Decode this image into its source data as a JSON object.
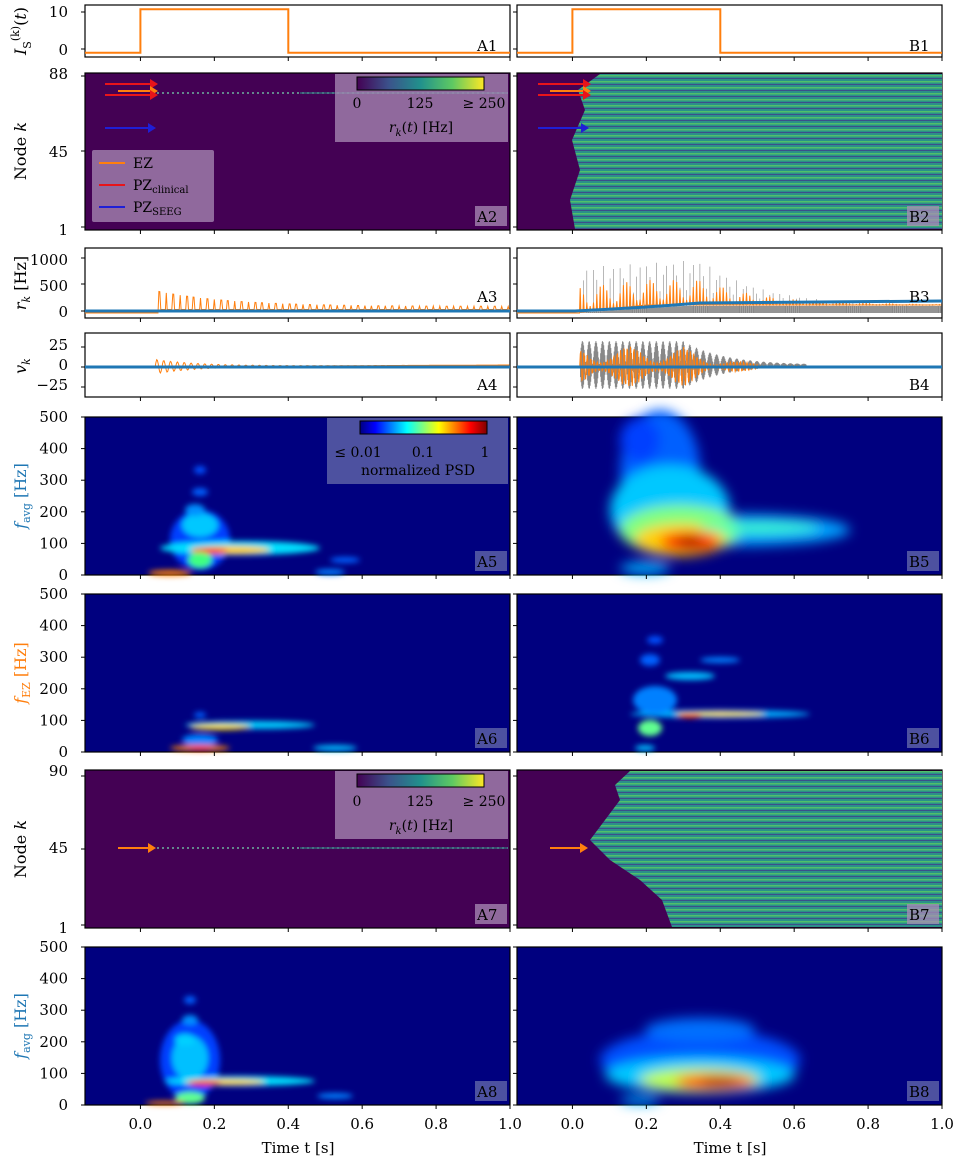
{
  "xlabel": "Time t [s]",
  "x_ticks": [
    "0.0",
    "0.2",
    "0.4",
    "0.6",
    "0.8",
    "1.0"
  ],
  "colors": {
    "ez": "#ff7f0e",
    "pz_clinical": "#e8141a",
    "pz_seeg": "#1f1fd6",
    "avg": "#1f77b4",
    "heatmap_bg": "#440154",
    "spec_bg": "#00007f"
  },
  "legend": {
    "ez": "EZ",
    "pz_clinical_main": "PZ",
    "pz_clinical_sub": "clinical",
    "pz_seeg_main": "PZ",
    "pz_seeg_sub": "SEEG"
  },
  "colorbar_rate": {
    "ticks": [
      "0",
      "125",
      "≥ 250"
    ],
    "label": "r_k(t) [Hz]",
    "colormap": "viridis"
  },
  "colorbar_psd": {
    "ticks": [
      "≤ 0.01",
      "0.1",
      "1"
    ],
    "label": "normalized PSD",
    "colormap": "jet"
  },
  "rows": [
    {
      "id": "1",
      "ylabel": "I_S^(k)(t)",
      "type": "line",
      "y_ticks": [
        "10",
        "0"
      ],
      "labels": [
        "A1",
        "B1"
      ]
    },
    {
      "id": "2",
      "ylabel": "Node k",
      "type": "heatmap",
      "y_ticks": [
        "88",
        "45",
        "1"
      ],
      "labels": [
        "A2",
        "B2"
      ]
    },
    {
      "id": "3",
      "ylabel": "r_k [Hz]",
      "type": "line",
      "y_ticks": [
        "1000",
        "500",
        "0"
      ],
      "labels": [
        "A3",
        "B3"
      ]
    },
    {
      "id": "4",
      "ylabel": "v_k",
      "type": "line",
      "y_ticks": [
        "25",
        "0",
        "−25"
      ],
      "labels": [
        "A4",
        "B4"
      ]
    },
    {
      "id": "5",
      "ylabel": "f_avg [Hz]",
      "type": "heatmap",
      "y_ticks": [
        "500",
        "400",
        "300",
        "200",
        "100",
        "0"
      ],
      "labels": [
        "A5",
        "B5"
      ]
    },
    {
      "id": "6",
      "ylabel": "f_EZ [Hz]",
      "type": "heatmap",
      "y_ticks": [
        "500",
        "400",
        "300",
        "200",
        "100",
        "0"
      ],
      "labels": [
        "A6",
        "B6"
      ]
    },
    {
      "id": "7",
      "ylabel": "Node k",
      "type": "heatmap",
      "y_ticks": [
        "90",
        "45",
        "1"
      ],
      "labels": [
        "A7",
        "B7"
      ]
    },
    {
      "id": "8",
      "ylabel": "f_avg [Hz]",
      "type": "heatmap",
      "y_ticks": [
        "500",
        "400",
        "300",
        "200",
        "100",
        "0"
      ],
      "labels": [
        "A8",
        "B8"
      ]
    }
  ],
  "chart_data": {
    "type": "line",
    "x_range": [
      -0.15,
      1.0
    ],
    "stimulus": {
      "x": [
        -0.15,
        0.0,
        0.0,
        0.4,
        0.4,
        1.0
      ],
      "y": [
        0,
        0,
        10,
        10,
        0,
        0
      ],
      "ylim": [
        -1,
        11
      ]
    },
    "rate_ylim": [
      -100,
      1300
    ],
    "voltage_ylim": [
      -40,
      40
    ],
    "freq_ylim": [
      0,
      500
    ],
    "nodes_A2": [
      1,
      88
    ],
    "nodes_A7": [
      1,
      90
    ],
    "arrows_A2": [
      {
        "node": 82,
        "zone": "pz_clinical"
      },
      {
        "node": 80,
        "zone": "ez"
      },
      {
        "node": 78,
        "zone": "pz_clinical"
      },
      {
        "node": 63,
        "zone": "pz_seeg"
      }
    ],
    "arrows_A7": [
      {
        "node": 45,
        "zone": "ez"
      }
    ]
  }
}
